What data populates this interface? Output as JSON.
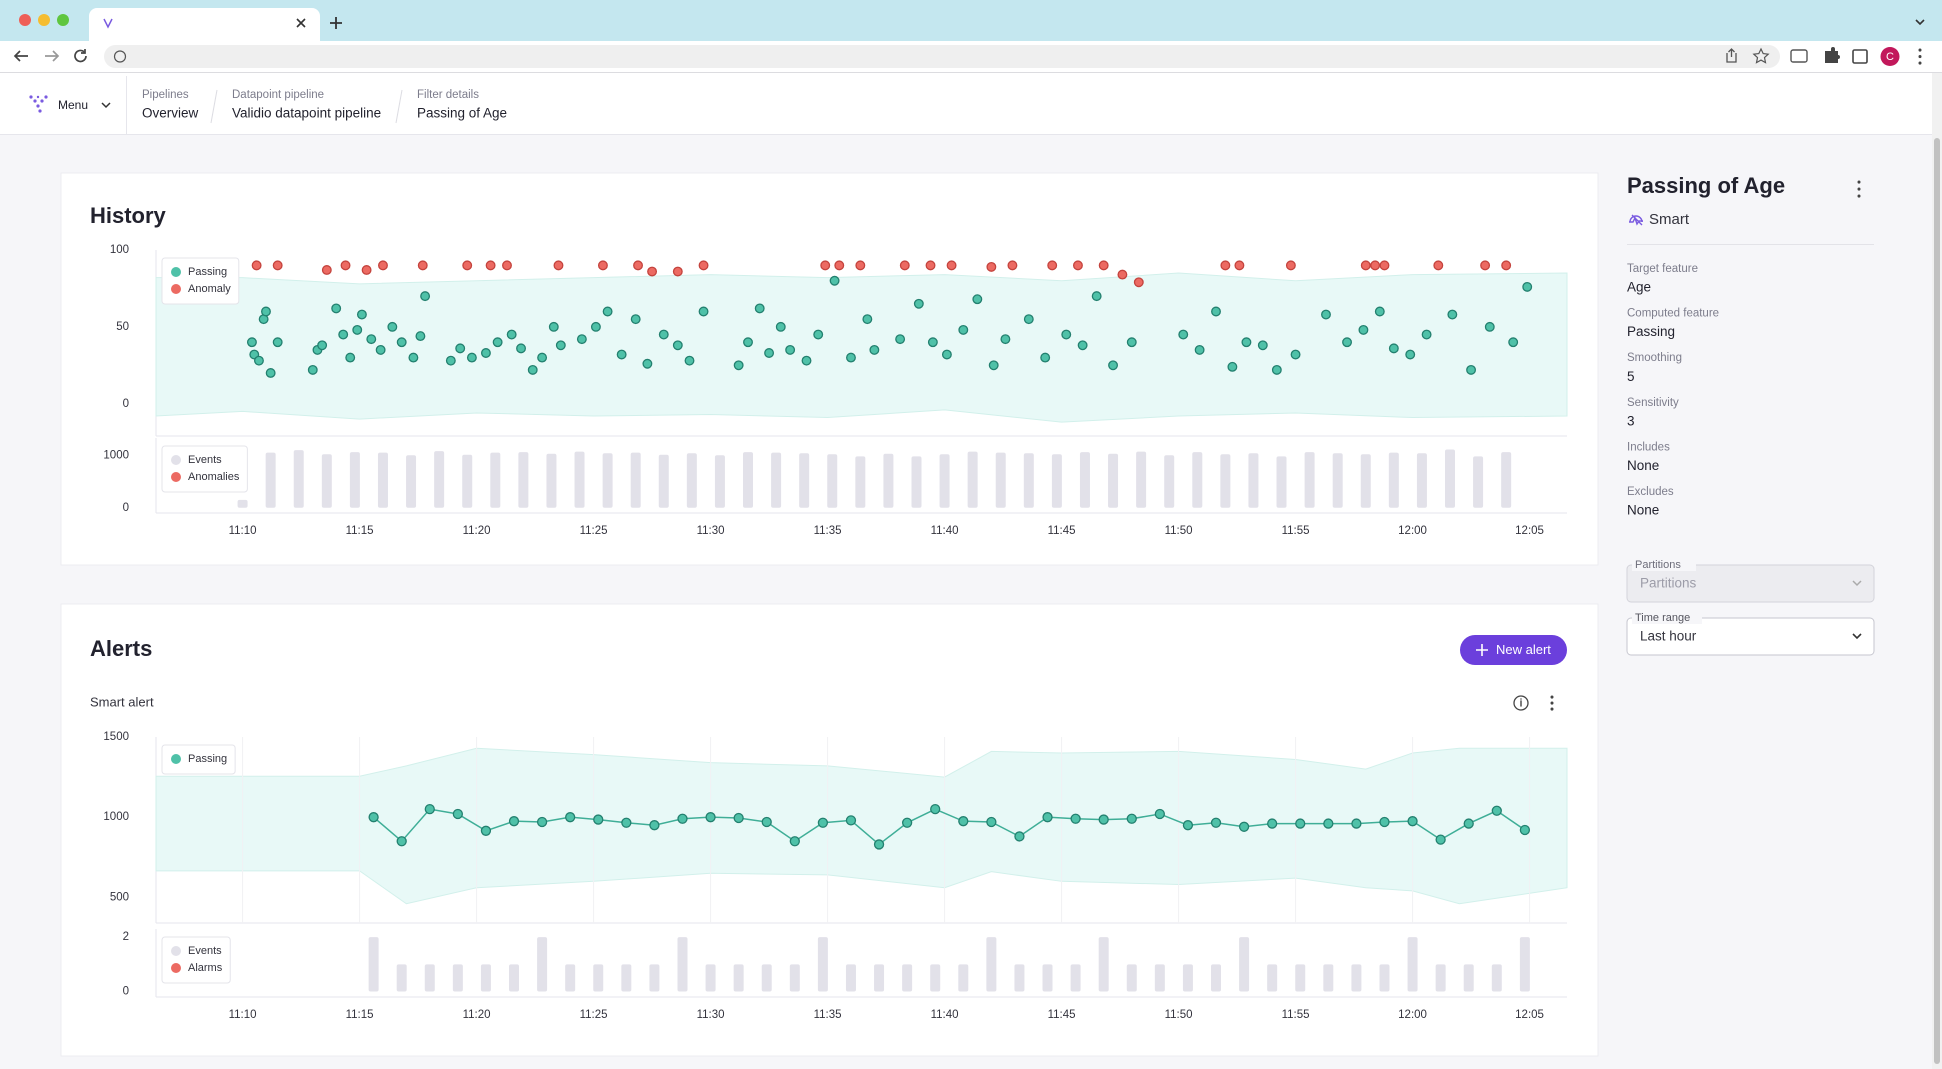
{
  "browser": {
    "avatar": "C"
  },
  "header": {
    "menu": "Menu",
    "breadcrumbs": [
      {
        "label": "Pipelines",
        "value": "Overview"
      },
      {
        "label": "Datapoint pipeline",
        "value": "Validio datapoint pipeline"
      },
      {
        "label": "Filter details",
        "value": "Passing of Age"
      }
    ]
  },
  "history": {
    "title": "History",
    "scatter": {
      "type": "scatter",
      "xlim": [
        6.3,
        66.6
      ],
      "ylim": [
        -21,
        100
      ],
      "yticks": [
        0,
        50,
        100
      ],
      "legend": "upper left",
      "band": {
        "color": "#e8f9f7",
        "x": [
          6.3,
          10,
          15,
          20,
          25,
          30,
          35,
          40,
          45,
          50,
          55,
          60,
          66.6
        ],
        "upper": [
          82,
          82,
          78,
          80,
          82,
          84,
          82,
          84,
          80,
          85,
          80,
          84,
          85
        ],
        "lower": [
          -8,
          -5,
          -10,
          -6,
          -8,
          -7,
          -9,
          -4,
          -12,
          -8,
          -6,
          -9,
          -8
        ]
      },
      "series": [
        {
          "name": "Passing",
          "color": "#4fc1a8",
          "x": [
            10.4,
            10.5,
            10.7,
            10.9,
            11.0,
            11.2,
            11.5,
            13.0,
            13.2,
            13.4,
            14.0,
            14.3,
            14.6,
            14.9,
            15.1,
            15.5,
            15.9,
            16.4,
            16.8,
            17.3,
            17.6,
            17.8,
            18.9,
            19.3,
            19.8,
            20.4,
            20.9,
            21.5,
            21.9,
            22.4,
            22.8,
            23.3,
            23.6,
            24.5,
            25.1,
            25.6,
            26.2,
            26.8,
            27.3,
            28.0,
            28.6,
            29.1,
            29.7,
            31.2,
            31.6,
            32.1,
            32.5,
            33.0,
            33.4,
            34.1,
            34.6,
            35.3,
            36.0,
            36.7,
            37.0,
            38.1,
            38.9,
            39.5,
            40.1,
            40.8,
            41.4,
            42.1,
            42.6,
            43.6,
            44.3,
            45.2,
            45.9,
            46.5,
            47.2,
            48.0,
            50.2,
            50.9,
            51.6,
            52.3,
            52.9,
            53.6,
            54.2,
            55.0,
            56.3,
            57.2,
            57.9,
            58.6,
            59.2,
            59.9,
            60.6,
            61.7,
            62.5,
            63.3,
            64.3,
            64.9
          ],
          "values": [
            40,
            32,
            28,
            55,
            60,
            20,
            40,
            22,
            35,
            38,
            62,
            45,
            30,
            48,
            58,
            42,
            35,
            50,
            40,
            30,
            44,
            70,
            28,
            36,
            30,
            33,
            40,
            45,
            36,
            22,
            30,
            50,
            38,
            42,
            50,
            60,
            32,
            55,
            26,
            45,
            38,
            28,
            60,
            25,
            40,
            62,
            33,
            50,
            35,
            28,
            45,
            80,
            30,
            55,
            35,
            42,
            65,
            40,
            32,
            48,
            68,
            25,
            42,
            55,
            30,
            45,
            38,
            70,
            25,
            40,
            45,
            35,
            60,
            24,
            40,
            38,
            22,
            32,
            58,
            40,
            48,
            60,
            36,
            32,
            45,
            58,
            22,
            50,
            40,
            76
          ]
        },
        {
          "name": "Anomaly",
          "color": "#ec6a62",
          "x": [
            10.6,
            11.5,
            13.6,
            14.4,
            15.3,
            16.0,
            17.7,
            19.6,
            20.6,
            21.3,
            23.5,
            25.4,
            26.9,
            27.5,
            28.6,
            29.7,
            34.9,
            35.5,
            36.4,
            38.3,
            39.4,
            40.3,
            42.0,
            42.9,
            44.6,
            45.7,
            46.8,
            47.6,
            48.3,
            52.0,
            52.6,
            54.8,
            58.0,
            58.4,
            58.8,
            61.1,
            63.1,
            64.0
          ],
          "values": [
            90,
            90,
            87,
            90,
            87,
            90,
            90,
            90,
            90,
            90,
            90,
            90,
            90,
            86,
            86,
            90,
            90,
            90,
            90,
            90,
            90,
            90,
            89,
            90,
            90,
            90,
            90,
            84,
            79,
            90,
            90,
            90,
            90,
            90,
            90,
            90,
            90,
            90
          ]
        }
      ]
    },
    "events": {
      "type": "bar",
      "xlim": [
        6.3,
        66.6
      ],
      "ylim": [
        -100,
        1330
      ],
      "yticks": [
        0,
        1000
      ],
      "legend": "upper left",
      "xticks": [
        {
          "value": 10,
          "label": "11:10"
        },
        {
          "value": 15,
          "label": "11:15"
        },
        {
          "value": 20,
          "label": "11:20"
        },
        {
          "value": 25,
          "label": "11:25"
        },
        {
          "value": 30,
          "label": "11:30"
        },
        {
          "value": 35,
          "label": "11:35"
        },
        {
          "value": 40,
          "label": "11:40"
        },
        {
          "value": 45,
          "label": "11:45"
        },
        {
          "value": 50,
          "label": "11:50"
        },
        {
          "value": 55,
          "label": "11:55"
        },
        {
          "value": 60,
          "label": "12:00"
        },
        {
          "value": 65,
          "label": "12:05"
        }
      ],
      "series": [
        {
          "name": "Events",
          "color": "#e2e1e9",
          "x": [
            10,
            11.2,
            12.4,
            13.6,
            14.8,
            16,
            17.2,
            18.4,
            19.6,
            20.8,
            22,
            23.2,
            24.4,
            25.6,
            26.8,
            28,
            29.2,
            30.4,
            31.6,
            32.8,
            34,
            35.2,
            36.4,
            37.6,
            38.8,
            40,
            41.2,
            42.4,
            43.6,
            44.8,
            46,
            47.2,
            48.4,
            49.6,
            50.8,
            52,
            53.2,
            54.4,
            55.6,
            56.8,
            58,
            59.2,
            60.4,
            61.6,
            62.8,
            64
          ],
          "values": [
            150,
            1050,
            1100,
            1020,
            1060,
            1050,
            1000,
            1080,
            1010,
            1050,
            1060,
            1030,
            1070,
            1040,
            1050,
            1010,
            1040,
            1000,
            1060,
            1050,
            1040,
            1020,
            980,
            1030,
            980,
            1020,
            1070,
            1050,
            1040,
            1020,
            1060,
            1030,
            1070,
            1000,
            1060,
            1020,
            1040,
            980,
            1060,
            1040,
            1020,
            1050,
            1040,
            1110,
            980,
            1060
          ]
        },
        {
          "name": "Anomalies",
          "color": "#ec6a62",
          "x": [],
          "values": []
        }
      ]
    }
  },
  "alerts": {
    "title": "Alerts",
    "button": "New alert",
    "alert_name": "Smart alert",
    "line": {
      "type": "line",
      "xlim": [
        6.3,
        66.6
      ],
      "ylim": [
        340,
        1500
      ],
      "yticks": [
        500,
        1000,
        1500
      ],
      "grid": true,
      "legend": "upper left",
      "band": {
        "color": "#e8f9f7",
        "x": [
          6.3,
          15,
          17,
          20,
          25,
          30,
          35,
          40,
          42,
          45,
          50,
          55,
          58,
          60,
          62,
          66.6
        ],
        "upper": [
          1255,
          1255,
          1320,
          1430,
          1390,
          1340,
          1320,
          1250,
          1410,
          1400,
          1410,
          1360,
          1300,
          1400,
          1430,
          1430
        ],
        "lower": [
          665,
          665,
          460,
          560,
          600,
          650,
          640,
          560,
          660,
          600,
          580,
          620,
          560,
          540,
          460,
          560
        ]
      },
      "series": [
        {
          "name": "Passing",
          "color": "#4fc1a8",
          "x": [
            15.6,
            16.8,
            18,
            19.2,
            20.4,
            21.6,
            22.8,
            24,
            25.2,
            26.4,
            27.6,
            28.8,
            30,
            31.2,
            32.4,
            33.6,
            34.8,
            36,
            37.2,
            38.4,
            39.6,
            40.8,
            42,
            43.2,
            44.4,
            45.6,
            46.8,
            48,
            49.2,
            50.4,
            51.6,
            52.8,
            54,
            55.2,
            56.4,
            57.6,
            58.8,
            60,
            61.2,
            62.4,
            63.6,
            64.8
          ],
          "values": [
            1000,
            850,
            1050,
            1020,
            915,
            975,
            970,
            1000,
            985,
            965,
            950,
            990,
            1000,
            995,
            970,
            850,
            965,
            980,
            830,
            965,
            1050,
            975,
            970,
            880,
            1000,
            990,
            985,
            990,
            1020,
            950,
            965,
            940,
            960,
            960,
            960,
            960,
            970,
            975,
            860,
            960,
            1040,
            920
          ]
        }
      ]
    },
    "alarms": {
      "type": "bar",
      "xlim": [
        6.3,
        66.6
      ],
      "ylim": [
        -0.2,
        2.3
      ],
      "yticks": [
        0,
        2
      ],
      "legend": "upper left",
      "xticks": [
        {
          "value": 10,
          "label": "11:10"
        },
        {
          "value": 15,
          "label": "11:15"
        },
        {
          "value": 20,
          "label": "11:20"
        },
        {
          "value": 25,
          "label": "11:25"
        },
        {
          "value": 30,
          "label": "11:30"
        },
        {
          "value": 35,
          "label": "11:35"
        },
        {
          "value": 40,
          "label": "11:40"
        },
        {
          "value": 45,
          "label": "11:45"
        },
        {
          "value": 50,
          "label": "11:50"
        },
        {
          "value": 55,
          "label": "11:55"
        },
        {
          "value": 60,
          "label": "12:00"
        },
        {
          "value": 65,
          "label": "12:05"
        }
      ],
      "series": [
        {
          "name": "Events",
          "color": "#e2e1e9",
          "x": [
            15.6,
            16.8,
            18,
            19.2,
            20.4,
            21.6,
            22.8,
            24,
            25.2,
            26.4,
            27.6,
            28.8,
            30,
            31.2,
            32.4,
            33.6,
            34.8,
            36,
            37.2,
            38.4,
            39.6,
            40.8,
            42,
            43.2,
            44.4,
            45.6,
            46.8,
            48,
            49.2,
            50.4,
            51.6,
            52.8,
            54,
            55.2,
            56.4,
            57.6,
            58.8,
            60,
            61.2,
            62.4,
            63.6,
            64.8
          ],
          "values": [
            2,
            1,
            1,
            1,
            1,
            1,
            2,
            1,
            1,
            1,
            1,
            2,
            1,
            1,
            1,
            1,
            2,
            1,
            1,
            1,
            1,
            1,
            2,
            1,
            1,
            1,
            2,
            1,
            1,
            1,
            1,
            2,
            1,
            1,
            1,
            1,
            1,
            2,
            1,
            1,
            1,
            2
          ]
        },
        {
          "name": "Alarms",
          "color": "#ec6a62",
          "x": [],
          "values": []
        }
      ]
    }
  },
  "panel": {
    "title": "Passing of Age",
    "mode": "Smart",
    "fields": [
      {
        "label": "Target feature",
        "value": "Age"
      },
      {
        "label": "Computed feature",
        "value": "Passing"
      },
      {
        "label": "Smoothing",
        "value": "5"
      },
      {
        "label": "Sensitivity",
        "value": "3"
      },
      {
        "label": "Includes",
        "value": "None"
      },
      {
        "label": "Excludes",
        "value": "None"
      }
    ],
    "partitions": {
      "label": "Partitions",
      "placeholder": "Partitions"
    },
    "time_range": {
      "label": "Time range",
      "value": "Last hour"
    }
  }
}
